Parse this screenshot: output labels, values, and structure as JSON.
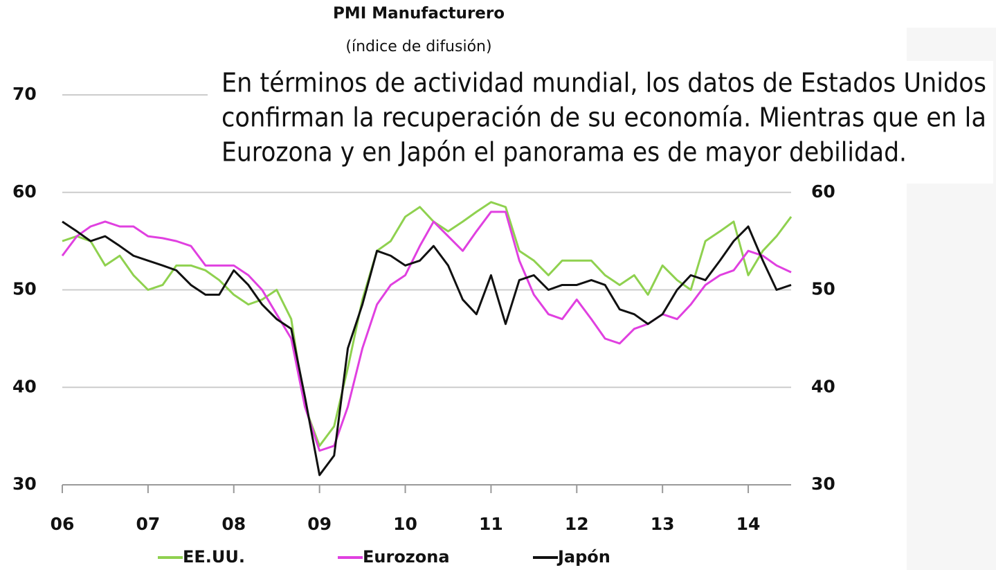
{
  "chart_data": {
    "type": "line",
    "title": "PMI Manufacturero",
    "subtitle": "(índice de difusión)",
    "annotation": [
      "En términos de actividad mundial, los datos de Estados Unidos",
      "confirman la recuperación de su economía. Mientras que en la",
      "Eurozona y en Japón el panorama es de mayor debilidad."
    ],
    "x": [
      6,
      6.17,
      6.33,
      6.5,
      6.67,
      6.83,
      7,
      7.17,
      7.33,
      7.5,
      7.67,
      7.83,
      8,
      8.17,
      8.33,
      8.5,
      8.67,
      8.83,
      9,
      9.17,
      9.33,
      9.5,
      9.67,
      9.83,
      10,
      10.17,
      10.33,
      10.5,
      10.67,
      10.83,
      11,
      11.17,
      11.33,
      11.5,
      11.67,
      11.83,
      12,
      12.17,
      12.33,
      12.5,
      12.67,
      12.83,
      13,
      13.17,
      13.33,
      13.5,
      13.67,
      13.83,
      14,
      14.17,
      14.33,
      14.5
    ],
    "series": [
      {
        "name": "EE.UU.",
        "color": "#8fd14f",
        "values": [
          55,
          55.5,
          55,
          52.5,
          53.5,
          51.5,
          50,
          50.5,
          52.5,
          52.5,
          52,
          51,
          49.5,
          48.5,
          49,
          50,
          47,
          38,
          34,
          36,
          42,
          49,
          54,
          55,
          57.5,
          58.5,
          57,
          56,
          57,
          58,
          59,
          58.5,
          54,
          53,
          51.5,
          53,
          53,
          53,
          51.5,
          50.5,
          51.5,
          49.5,
          52.5,
          51,
          50,
          55,
          56,
          57,
          51.5,
          54,
          55.5,
          57.5
        ]
      },
      {
        "name": "Eurozona",
        "color": "#e040e0",
        "values": [
          53.5,
          55.5,
          56.5,
          57,
          56.5,
          56.5,
          55.5,
          55.3,
          55,
          54.5,
          52.5,
          52.5,
          52.5,
          51.5,
          50,
          47.5,
          45,
          38,
          33.5,
          34,
          38,
          44,
          48.5,
          50.5,
          51.5,
          54.5,
          57,
          55.5,
          54,
          56,
          58,
          58,
          53,
          49.5,
          47.5,
          47,
          49,
          47,
          45,
          44.5,
          46,
          46.5,
          47.5,
          47,
          48.5,
          50.5,
          51.5,
          52,
          54,
          53.5,
          52.5,
          51.8
        ]
      },
      {
        "name": "Japón",
        "color": "#111111",
        "values": [
          57,
          56,
          55,
          55.5,
          54.5,
          53.5,
          53,
          52.5,
          52,
          50.5,
          49.5,
          49.5,
          52,
          50.5,
          48.5,
          47,
          46,
          39,
          31,
          33,
          44,
          48.5,
          54,
          53.5,
          52.5,
          53,
          54.5,
          52.5,
          49,
          47.5,
          51.5,
          46.5,
          51,
          51.5,
          50,
          50.5,
          50.5,
          51,
          50.5,
          48,
          47.5,
          46.5,
          47.5,
          50,
          51.5,
          51,
          53,
          55,
          56.5,
          53,
          50,
          50.5
        ]
      }
    ],
    "xlim": [
      6,
      14.5
    ],
    "xticks": [
      {
        "value": 6,
        "label": "06"
      },
      {
        "value": 7,
        "label": "07"
      },
      {
        "value": 8,
        "label": "08"
      },
      {
        "value": 9,
        "label": "09"
      },
      {
        "value": 10,
        "label": "10"
      },
      {
        "value": 11,
        "label": "11"
      },
      {
        "value": 12,
        "label": "12"
      },
      {
        "value": 13,
        "label": "13"
      },
      {
        "value": 14,
        "label": "14"
      }
    ],
    "ylim": [
      30,
      70
    ],
    "yticks": [
      30,
      40,
      50,
      60,
      70
    ],
    "y2lim": [
      30,
      70
    ],
    "y2ticks": [
      30,
      40,
      50,
      60
    ],
    "grid": true,
    "legend": "bottom"
  }
}
